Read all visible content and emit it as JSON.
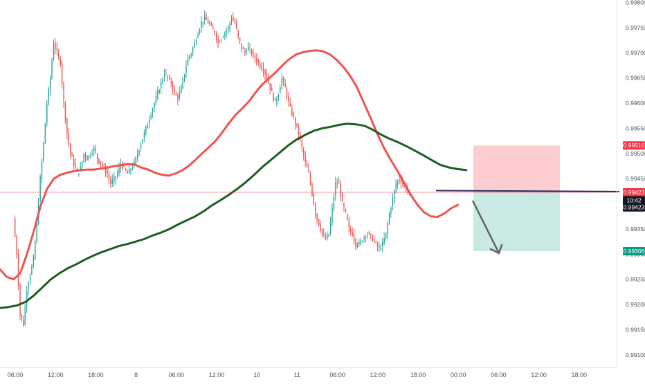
{
  "chart_data": {
    "type": "line",
    "title": "",
    "xlabel": "",
    "ylabel": "",
    "ylim": [
      0.99075,
      0.99805
    ],
    "y_ticks": [
      "0.99800",
      "0.99750",
      "0.99700",
      "0.99650",
      "0.99600",
      "0.99550",
      "0.99500",
      "0.99450",
      "0.99400",
      "0.99350",
      "0.99300",
      "0.99250",
      "0.99200",
      "0.99150",
      "0.99100"
    ],
    "x_ticks": [
      {
        "label": "06:00",
        "i": 0
      },
      {
        "label": "12:00",
        "i": 12
      },
      {
        "label": "18:00",
        "i": 24
      },
      {
        "label": "8",
        "i": 36
      },
      {
        "label": "06:00",
        "i": 48
      },
      {
        "label": "12:00",
        "i": 60
      },
      {
        "label": "10",
        "i": 72
      },
      {
        "label": "11",
        "i": 84
      },
      {
        "label": "06:00",
        "i": 96
      },
      {
        "label": "12:00",
        "i": 108
      },
      {
        "label": "18:00",
        "i": 120
      },
      {
        "label": "00:00",
        "i": 132
      },
      {
        "label": "06:00",
        "i": 144
      },
      {
        "label": "12:00",
        "i": 156
      },
      {
        "label": "18:00",
        "i": 168
      }
    ],
    "price_close": [
      0.9937,
      0.993,
      0.9918,
      0.9916,
      0.9923,
      0.9926,
      0.9929,
      0.9936,
      0.9945,
      0.9952,
      0.996,
      0.9965,
      0.9972,
      0.997,
      0.9968,
      0.996,
      0.9954,
      0.995,
      0.9948,
      0.9946,
      0.9947,
      0.995,
      0.9949,
      0.995,
      0.9951,
      0.9949,
      0.9948,
      0.9947,
      0.9946,
      0.9944,
      0.9945,
      0.9946,
      0.9948,
      0.9947,
      0.9946,
      0.9947,
      0.9948,
      0.995,
      0.9952,
      0.9954,
      0.9956,
      0.9958,
      0.996,
      0.9962,
      0.9964,
      0.9966,
      0.9965,
      0.9964,
      0.9962,
      0.9961,
      0.9963,
      0.9966,
      0.9969,
      0.997,
      0.9972,
      0.9974,
      0.9976,
      0.9977,
      0.9976,
      0.9975,
      0.9974,
      0.9972,
      0.9973,
      0.9974,
      0.9975,
      0.9977,
      0.9976,
      0.9973,
      0.9971,
      0.997,
      0.9971,
      0.997,
      0.9969,
      0.9968,
      0.9967,
      0.9966,
      0.9964,
      0.9962,
      0.996,
      0.9962,
      0.9965,
      0.9963,
      0.996,
      0.9958,
      0.9956,
      0.9954,
      0.9951,
      0.9948,
      0.9946,
      0.9942,
      0.9938,
      0.9936,
      0.9934,
      0.9933,
      0.9934,
      0.9939,
      0.9944,
      0.9944,
      0.994,
      0.9938,
      0.9935,
      0.9934,
      0.9932,
      0.9932,
      0.9933,
      0.9934,
      0.9934,
      0.9933,
      0.9932,
      0.9931,
      0.9932,
      0.9934,
      0.9938,
      0.9941,
      0.9944,
      0.9945,
      0.9944,
      0.9943,
      0.99423
    ],
    "series": [
      {
        "name": "",
        "color": "#ef5350",
        "values": [
          0.9927,
          0.99255,
          0.9925,
          0.99262,
          0.993,
          0.99345,
          0.99395,
          0.9943,
          0.9945,
          0.99458,
          0.99462,
          0.99465,
          0.99467,
          0.99468,
          0.99468,
          0.9947,
          0.99472,
          0.99475,
          0.99477,
          0.99479,
          0.99478,
          0.99472,
          0.99468,
          0.99462,
          0.99458,
          0.99456,
          0.9946,
          0.99466,
          0.99475,
          0.99487,
          0.995,
          0.99512,
          0.99525,
          0.99542,
          0.9956,
          0.99577,
          0.9959,
          0.99604,
          0.99622,
          0.99638,
          0.9965,
          0.99662,
          0.99676,
          0.99688,
          0.99697,
          0.99701,
          0.99704,
          0.99705,
          0.99703,
          0.99697,
          0.99686,
          0.99672,
          0.99654,
          0.99632,
          0.99602,
          0.99572,
          0.9954,
          0.99512,
          0.99488,
          0.99466,
          0.99442,
          0.99418,
          0.99398,
          0.99383,
          0.99375,
          0.99374,
          0.99381,
          0.99391,
          0.99398
        ]
      },
      {
        "name": "",
        "color": "#1b5e20",
        "values": [
          0.99193,
          0.99195,
          0.99198,
          0.99205,
          0.99218,
          0.99234,
          0.9925,
          0.99262,
          0.99272,
          0.9928,
          0.99289,
          0.99297,
          0.99304,
          0.9931,
          0.99316,
          0.9932,
          0.99325,
          0.9933,
          0.99337,
          0.99343,
          0.9935,
          0.99359,
          0.99367,
          0.99375,
          0.99385,
          0.99397,
          0.99407,
          0.99418,
          0.9943,
          0.99443,
          0.99458,
          0.99474,
          0.99488,
          0.99502,
          0.99516,
          0.99528,
          0.99537,
          0.99545,
          0.9955,
          0.99553,
          0.99557,
          0.99559,
          0.99558,
          0.99555,
          0.99547,
          0.99537,
          0.99529,
          0.99522,
          0.99514,
          0.99505,
          0.99496,
          0.99486,
          0.99477,
          0.99472,
          0.99469,
          0.99467
        ]
      }
    ],
    "price_lines": [
      {
        "label": "0.99516",
        "color": "#f23645",
        "y": 0.99516
      },
      {
        "label": "0.99423",
        "color": "#f23645",
        "y": 0.99423
      },
      {
        "label": "10:42",
        "color": "#131722",
        "y": 0.99407
      },
      {
        "label": "0.99423",
        "color": "#131722",
        "y": 0.99393
      },
      {
        "label": "0.99306",
        "color": "#089981",
        "y": 0.99306
      }
    ],
    "position": {
      "entry": 0.99423,
      "stop_loss": 0.99516,
      "take_profit": 0.99306
    },
    "horizontal_line": 0.99425,
    "up_color": "#26a69a",
    "down_color": "#ef5350",
    "grid": false
  }
}
